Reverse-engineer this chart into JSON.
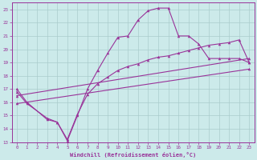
{
  "title": "",
  "xlabel": "Windchill (Refroidissement éolien,°C)",
  "background_color": "#cceaea",
  "grid_color": "#aacccc",
  "line_color": "#993399",
  "xlim": [
    -0.5,
    23.5
  ],
  "ylim": [
    13,
    23.5
  ],
  "yticks": [
    13,
    14,
    15,
    16,
    17,
    18,
    19,
    20,
    21,
    22,
    23
  ],
  "xticks": [
    0,
    1,
    2,
    3,
    4,
    5,
    6,
    7,
    8,
    9,
    10,
    11,
    12,
    13,
    14,
    15,
    16,
    17,
    18,
    19,
    20,
    21,
    22,
    23
  ],
  "line1_x": [
    0,
    1,
    3,
    4,
    5,
    6,
    7,
    8,
    9,
    10,
    11,
    12,
    13,
    14,
    15,
    16,
    17,
    18,
    19,
    20,
    21,
    22,
    23
  ],
  "line1_y": [
    17.0,
    16.0,
    14.7,
    14.5,
    13.1,
    15.0,
    17.0,
    18.4,
    19.7,
    20.9,
    21.0,
    22.2,
    22.9,
    23.1,
    23.1,
    21.0,
    21.0,
    20.4,
    19.3,
    19.3,
    19.3,
    19.3,
    19.0
  ],
  "line2_x": [
    0,
    1,
    3,
    4,
    5,
    6,
    7,
    8,
    9,
    10,
    11,
    12,
    13,
    14,
    15,
    16,
    17,
    18,
    19,
    20,
    21,
    22,
    23
  ],
  "line2_y": [
    16.8,
    15.9,
    14.8,
    14.5,
    13.2,
    15.1,
    16.6,
    17.4,
    17.9,
    18.4,
    18.7,
    18.9,
    19.2,
    19.4,
    19.5,
    19.7,
    19.9,
    20.1,
    20.3,
    20.4,
    20.5,
    20.7,
    19.0
  ],
  "line3_x": [
    0,
    23
  ],
  "line3_y": [
    16.5,
    19.3
  ],
  "line4_x": [
    0,
    23
  ],
  "line4_y": [
    15.9,
    18.5
  ]
}
